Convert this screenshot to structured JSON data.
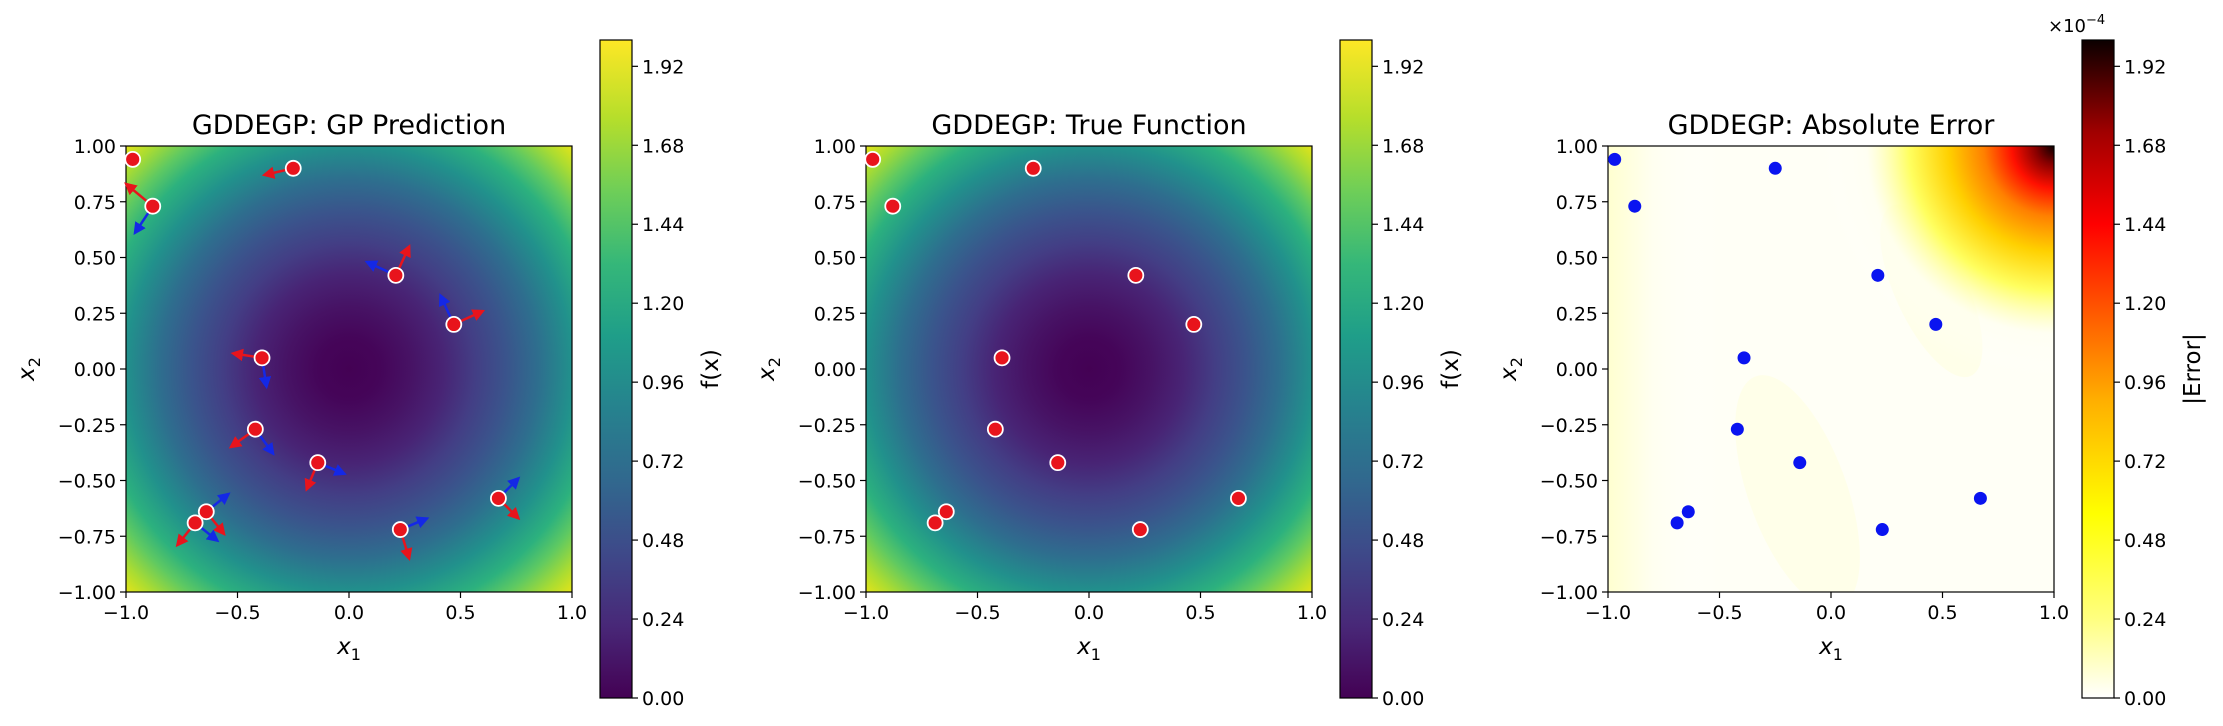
{
  "chart_data": [
    {
      "type": "heatmap",
      "title": "GDDEGP: GP Prediction",
      "xlabel": "x1",
      "ylabel": "x2",
      "xlim": [
        -1,
        1
      ],
      "ylim": [
        -1,
        1
      ],
      "xticks": [
        "−1.0",
        "−0.5",
        "0.0",
        "0.5",
        "1.0"
      ],
      "yticks": [
        "1.00",
        "0.75",
        "0.50",
        "0.25",
        "0.00",
        "−0.25",
        "−0.50",
        "−0.75",
        "−1.00"
      ],
      "colormap": "viridis",
      "colorbar": {
        "label": "f(x)",
        "min": 0,
        "max": 2.0,
        "ticks": [
          "0.00",
          "0.24",
          "0.48",
          "0.72",
          "0.96",
          "1.20",
          "1.44",
          "1.68",
          "1.92"
        ]
      },
      "points": [
        {
          "x": -0.97,
          "y": 0.94
        },
        {
          "x": -0.88,
          "y": 0.73
        },
        {
          "x": -0.25,
          "y": 0.9
        },
        {
          "x": 0.21,
          "y": 0.42
        },
        {
          "x": 0.47,
          "y": 0.2
        },
        {
          "x": -0.39,
          "y": 0.05
        },
        {
          "x": -0.42,
          "y": -0.27
        },
        {
          "x": -0.14,
          "y": -0.42
        },
        {
          "x": 0.67,
          "y": -0.58
        },
        {
          "x": -0.64,
          "y": -0.64
        },
        {
          "x": -0.69,
          "y": -0.69
        },
        {
          "x": 0.23,
          "y": -0.72
        }
      ],
      "direction_arrows": [
        {
          "x": -0.88,
          "y": 0.73,
          "d1": [
            -0.12,
            0.1
          ],
          "d2": [
            -0.08,
            -0.12
          ]
        },
        {
          "x": -0.25,
          "y": 0.9,
          "d1": [
            -0.13,
            -0.03
          ],
          "d2": null
        },
        {
          "x": 0.21,
          "y": 0.42,
          "d1": [
            0.06,
            0.13
          ],
          "d2": [
            -0.13,
            0.06
          ]
        },
        {
          "x": 0.47,
          "y": 0.2,
          "d1": [
            0.13,
            0.06
          ],
          "d2": [
            -0.06,
            0.13
          ]
        },
        {
          "x": -0.39,
          "y": 0.05,
          "d1": [
            -0.13,
            0.02
          ],
          "d2": [
            0.02,
            -0.13
          ]
        },
        {
          "x": -0.42,
          "y": -0.27,
          "d1": [
            -0.11,
            -0.08
          ],
          "d2": [
            0.08,
            -0.11
          ]
        },
        {
          "x": -0.14,
          "y": -0.42,
          "d1": [
            -0.05,
            -0.12
          ],
          "d2": [
            0.12,
            -0.05
          ]
        },
        {
          "x": 0.67,
          "y": -0.58,
          "d1": [
            0.09,
            -0.09
          ],
          "d2": [
            0.09,
            0.09
          ]
        },
        {
          "x": -0.64,
          "y": -0.64,
          "d1": [
            0.08,
            -0.1
          ],
          "d2": [
            0.1,
            0.08
          ]
        },
        {
          "x": -0.69,
          "y": -0.69,
          "d1": [
            -0.08,
            -0.1
          ],
          "d2": [
            0.1,
            -0.08
          ]
        },
        {
          "x": 0.23,
          "y": -0.72,
          "d1": [
            0.04,
            -0.13
          ],
          "d2": [
            0.12,
            0.05
          ]
        }
      ]
    },
    {
      "type": "heatmap",
      "title": "GDDEGP: True Function",
      "xlabel": "x1",
      "ylabel": "x2",
      "xlim": [
        -1,
        1
      ],
      "ylim": [
        -1,
        1
      ],
      "xticks": [
        "−1.0",
        "−0.5",
        "0.0",
        "0.5",
        "1.0"
      ],
      "yticks": [
        "1.00",
        "0.75",
        "0.50",
        "0.25",
        "0.00",
        "−0.25",
        "−0.50",
        "−0.75",
        "−1.00"
      ],
      "colormap": "viridis",
      "colorbar": {
        "label": "f(x)",
        "min": 0,
        "max": 2.0,
        "ticks": [
          "0.00",
          "0.24",
          "0.48",
          "0.72",
          "0.96",
          "1.20",
          "1.44",
          "1.68",
          "1.92"
        ]
      },
      "points": [
        {
          "x": -0.97,
          "y": 0.94
        },
        {
          "x": -0.88,
          "y": 0.73
        },
        {
          "x": -0.25,
          "y": 0.9
        },
        {
          "x": 0.21,
          "y": 0.42
        },
        {
          "x": 0.47,
          "y": 0.2
        },
        {
          "x": -0.39,
          "y": 0.05
        },
        {
          "x": -0.42,
          "y": -0.27
        },
        {
          "x": -0.14,
          "y": -0.42
        },
        {
          "x": 0.67,
          "y": -0.58
        },
        {
          "x": -0.64,
          "y": -0.64
        },
        {
          "x": -0.69,
          "y": -0.69
        },
        {
          "x": 0.23,
          "y": -0.72
        }
      ]
    },
    {
      "type": "heatmap",
      "title": "GDDEGP: Absolute Error",
      "xlabel": "x1",
      "ylabel": "x2",
      "xlim": [
        -1,
        1
      ],
      "ylim": [
        -1,
        1
      ],
      "xticks": [
        "−1.0",
        "−0.5",
        "0.0",
        "0.5",
        "1.0"
      ],
      "yticks": [
        "1.00",
        "0.75",
        "0.50",
        "0.25",
        "0.00",
        "−0.25",
        "−0.50",
        "−0.75",
        "−1.00"
      ],
      "colormap": "hot_r",
      "colorbar": {
        "label": "|Error|",
        "scale_label": "×10",
        "scale_exponent": "−4",
        "min": 0,
        "max": 2.0,
        "ticks": [
          "0.00",
          "0.24",
          "0.48",
          "0.72",
          "0.96",
          "1.20",
          "1.44",
          "1.68",
          "1.92"
        ]
      },
      "points": [
        {
          "x": -0.97,
          "y": 0.94
        },
        {
          "x": -0.88,
          "y": 0.73
        },
        {
          "x": -0.25,
          "y": 0.9
        },
        {
          "x": 0.21,
          "y": 0.42
        },
        {
          "x": 0.47,
          "y": 0.2
        },
        {
          "x": -0.39,
          "y": 0.05
        },
        {
          "x": -0.42,
          "y": -0.27
        },
        {
          "x": -0.14,
          "y": -0.42
        },
        {
          "x": 0.67,
          "y": -0.58
        },
        {
          "x": -0.64,
          "y": -0.64
        },
        {
          "x": -0.69,
          "y": -0.69
        },
        {
          "x": 0.23,
          "y": -0.72
        }
      ]
    }
  ],
  "colors": {
    "point_red": "#e8141c",
    "point_blue": "#0a14f0",
    "arrow_red": "#e8141c",
    "arrow_blue": "#1428e6"
  }
}
